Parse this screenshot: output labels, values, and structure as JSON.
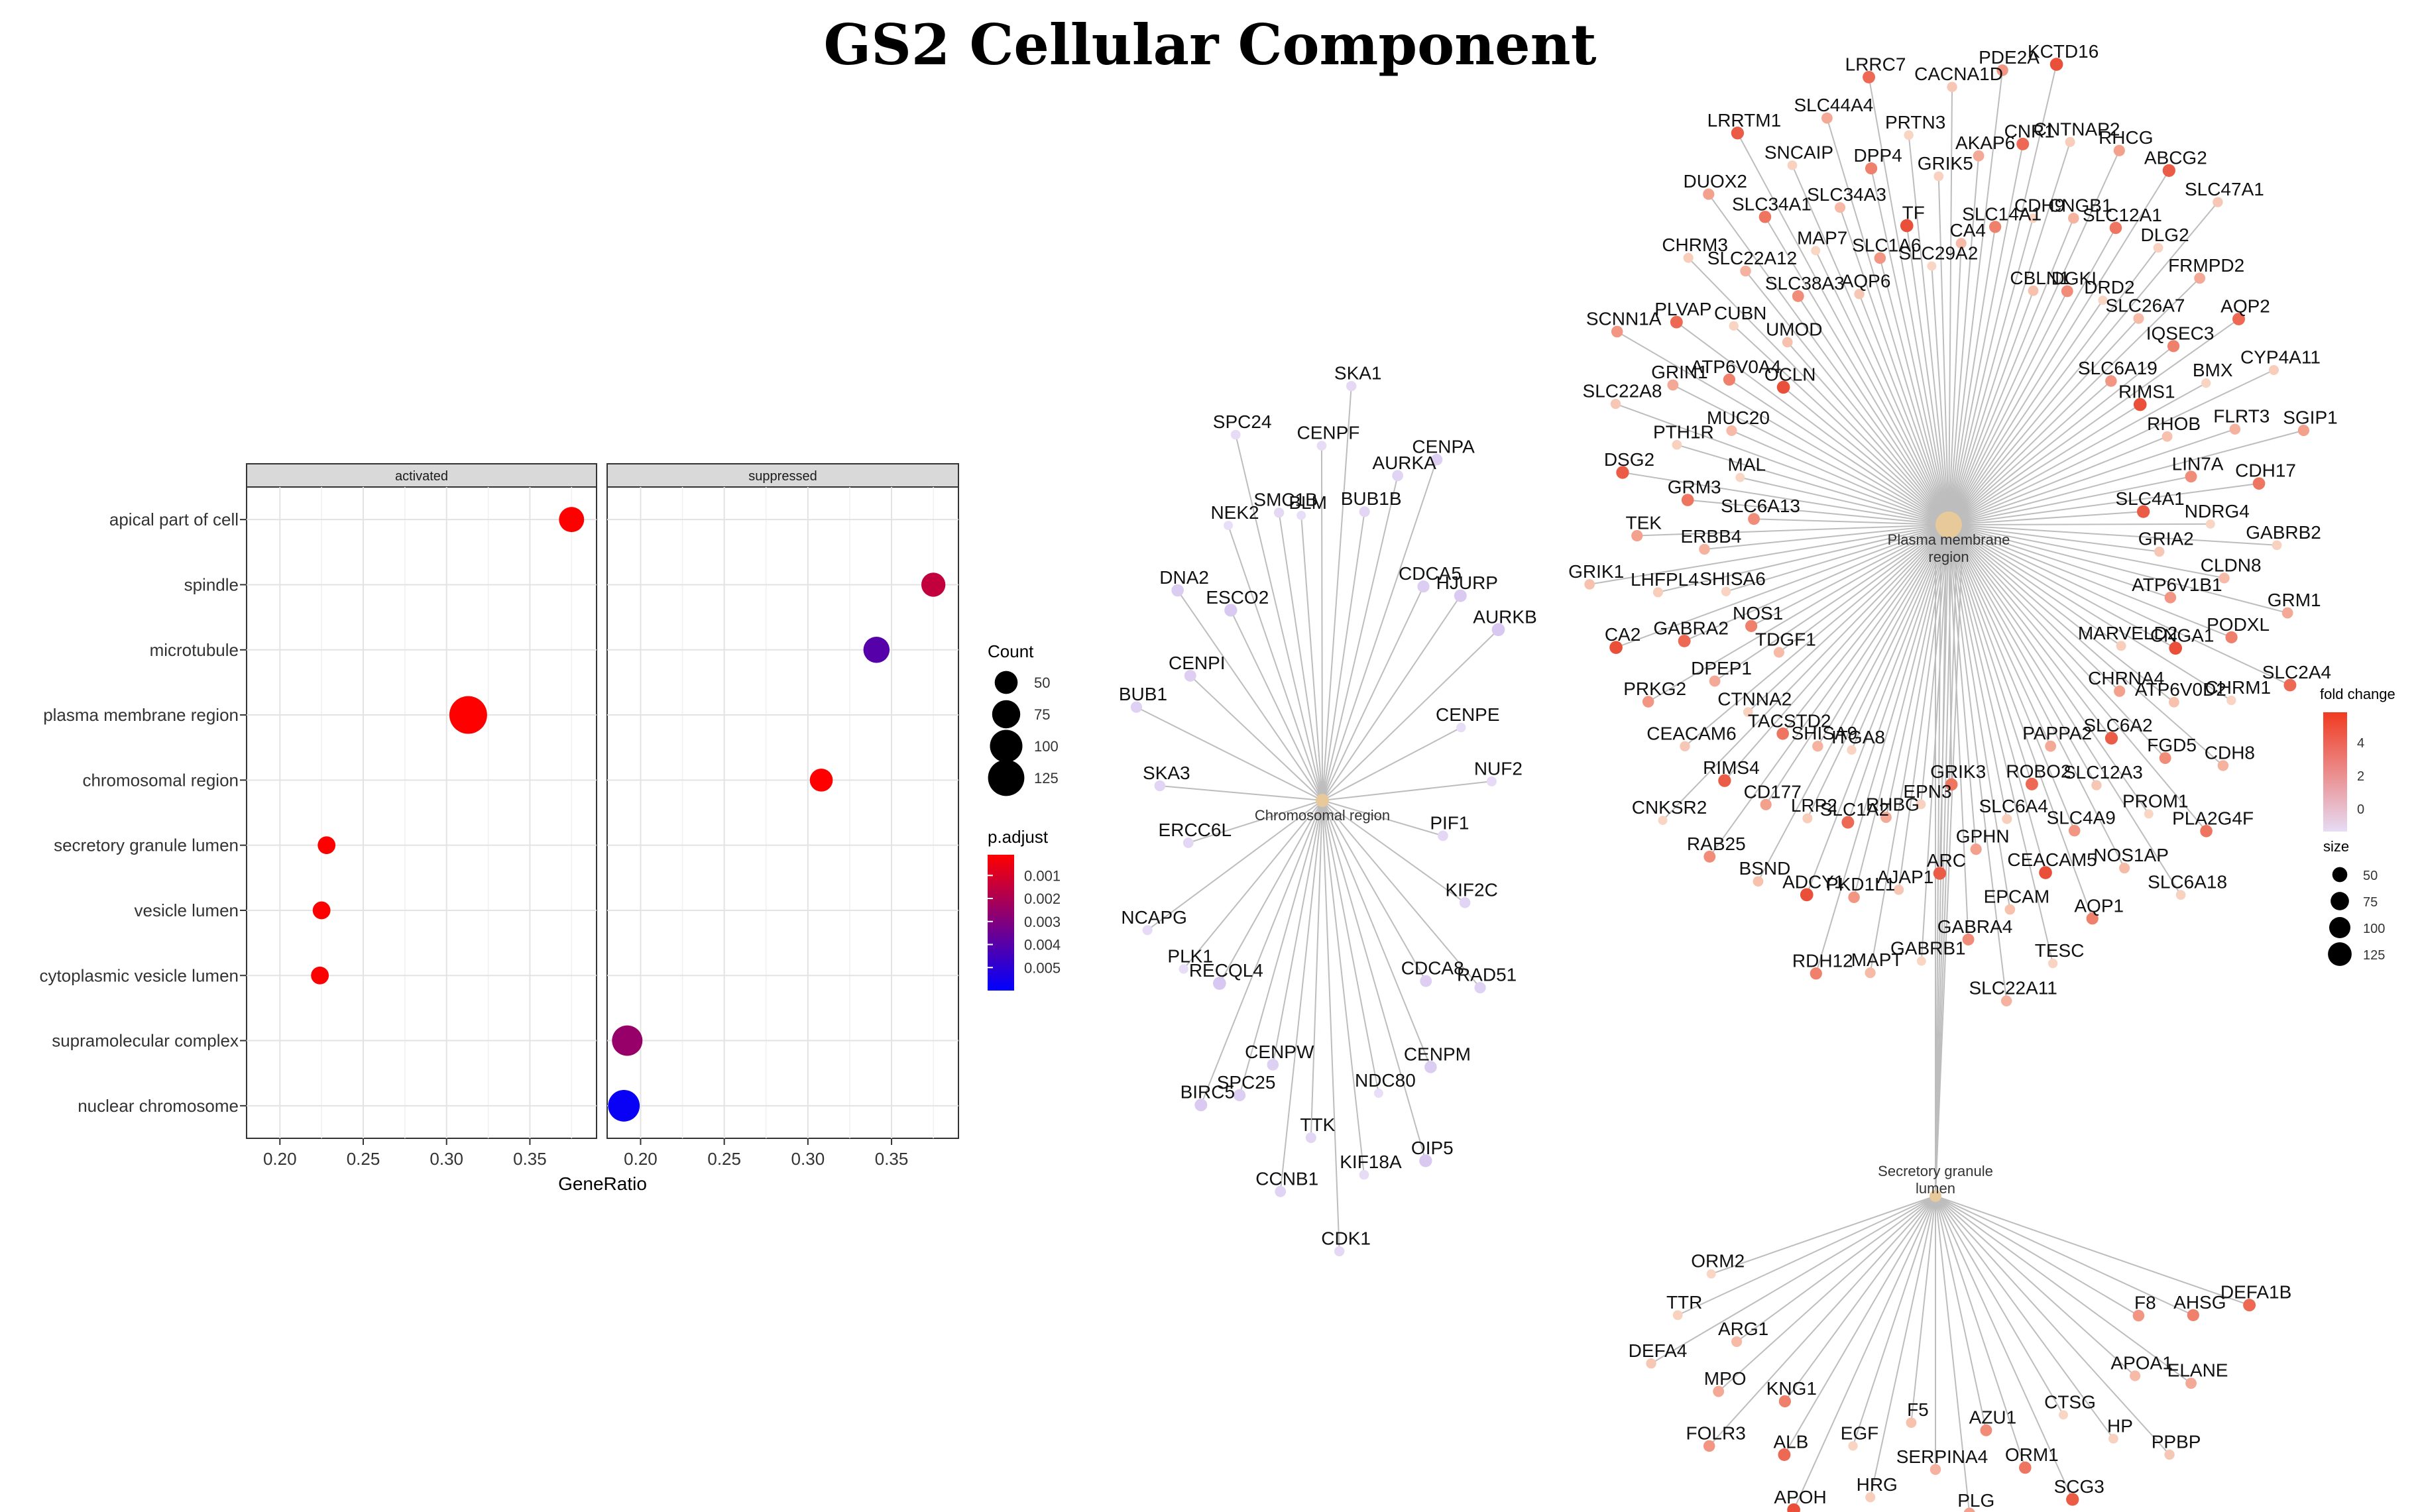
{
  "title": "GS2 Cellular Component",
  "chart_data": [
    {
      "type": "scatter",
      "subtype": "faceted-dotplot",
      "facets": [
        "activated",
        "suppressed"
      ],
      "categories": [
        "apical part of cell",
        "spindle",
        "microtubule",
        "plasma membrane region",
        "chromosomal region",
        "secretory granule lumen",
        "vesicle lumen",
        "cytoplasmic vesicle lumen",
        "supramolecular complex",
        "nuclear chromosome"
      ],
      "xlabel": "GeneRatio",
      "xlim": [
        0.18,
        0.39
      ],
      "xticks": [
        "0.20",
        "0.25",
        "0.30",
        "0.35"
      ],
      "points": [
        {
          "facet": "activated",
          "category": "apical part of cell",
          "x": 0.375,
          "count": 60,
          "p_adjust": 0.0001
        },
        {
          "facet": "suppressed",
          "category": "spindle",
          "x": 0.375,
          "count": 55,
          "p_adjust": 0.0015
        },
        {
          "facet": "suppressed",
          "category": "microtubule",
          "x": 0.341,
          "count": 65,
          "p_adjust": 0.004
        },
        {
          "facet": "activated",
          "category": "plasma membrane region",
          "x": 0.313,
          "count": 135,
          "p_adjust": 0.0001
        },
        {
          "facet": "suppressed",
          "category": "chromosomal region",
          "x": 0.308,
          "count": 50,
          "p_adjust": 0.0001
        },
        {
          "facet": "activated",
          "category": "secretory granule lumen",
          "x": 0.228,
          "count": 30,
          "p_adjust": 0.0001
        },
        {
          "facet": "activated",
          "category": "vesicle lumen",
          "x": 0.225,
          "count": 30,
          "p_adjust": 0.0001
        },
        {
          "facet": "activated",
          "category": "cytoplasmic vesicle lumen",
          "x": 0.224,
          "count": 30,
          "p_adjust": 0.0001
        },
        {
          "facet": "suppressed",
          "category": "supramolecular complex",
          "x": 0.192,
          "count": 88,
          "p_adjust": 0.0025
        },
        {
          "facet": "suppressed",
          "category": "nuclear chromosome",
          "x": 0.19,
          "count": 95,
          "p_adjust": 0.0058
        }
      ],
      "legend_count": {
        "title": "Count",
        "values": [
          50,
          75,
          100,
          125
        ]
      },
      "legend_padjust": {
        "title": "p.adjust",
        "ticks": [
          "0.001",
          "0.002",
          "0.003",
          "0.004",
          "0.005"
        ],
        "range": [
          0.0001,
          0.006
        ],
        "colors": [
          "#ff0000",
          "#0000ff"
        ]
      }
    },
    {
      "type": "network",
      "subtype": "cnetplot",
      "legend_fold": {
        "title": "fold change",
        "ticks": [
          "4",
          "2",
          "0"
        ],
        "colors": [
          "#f03b20",
          "#e6dcf5"
        ]
      },
      "legend_size": {
        "title": "size",
        "values": [
          50,
          75,
          100,
          125
        ]
      },
      "hubs": [
        {
          "label": "Chromosomal region",
          "genes": [
            "BLM",
            "CENPF",
            "SKA1",
            "BUB1B",
            "AURKA",
            "CENPA",
            "CDCA5",
            "HJURP",
            "AURKB",
            "CENPE",
            "NUF2",
            "PIF1",
            "KIF2C",
            "RAD51",
            "CDCA8",
            "CENPM",
            "OIP5",
            "NDC80",
            "KIF18A",
            "CDK1",
            "TTK",
            "CCNB1",
            "CENPW",
            "SPC25",
            "BIRC5",
            "RECQL4",
            "PLK1",
            "NCAPG",
            "ERCC6L",
            "SKA3",
            "BUB1",
            "CENPI",
            "DNA2",
            "ESCO2",
            "NEK2",
            "SPC24",
            "SMC1B"
          ]
        },
        {
          "label": "Plasma membrane region",
          "genes": [
            "SLC29A2",
            "GRIK5",
            "CACNA1D",
            "CA4",
            "AKAP6",
            "PDE2A",
            "SLC14A1",
            "CNR1",
            "KCTD16",
            "CDH9",
            "CNTNAP2",
            "CBLN1",
            "CNGB1",
            "RHCG",
            "DGKI",
            "SLC12A1",
            "ABCG2",
            "DRD2",
            "DLG2",
            "SLC47A1",
            "SLC26A7",
            "FRMPD2",
            "SLC6A19",
            "IQSEC3",
            "AQP2",
            "RIMS1",
            "BMX",
            "CYP4A11",
            "RHOB",
            "FLRT3",
            "SGIP1",
            "LIN7A",
            "CDH17",
            "SLC4A1",
            "NDRG4",
            "GABRB2",
            "GRIA2",
            "CLDN8",
            "GRM1",
            "ATP6V1B1",
            "PODXL",
            "SLC2A4",
            "CNGA1",
            "CHRM1",
            "MARVELD2",
            "ATP6V0D2",
            "CDH8",
            "CHRNA4",
            "FGD5",
            "PLA2G4F",
            "SLC6A2",
            "PROM1",
            "SLC6A18",
            "SLC12A3",
            "NOS1AP",
            "PAPPA2",
            "SLC4A9",
            "AQP1",
            "ROBO2",
            "CEACAM5",
            "TESC",
            "SLC6A4",
            "EPCAM",
            "SLC22A11",
            "GPHN",
            "GABRA4",
            "GRIK3",
            "ARC",
            "GABRB1",
            "EPN3",
            "AJAP1",
            "MAPT",
            "RHBG",
            "PKD1L1",
            "RDH12",
            "SLC1A2",
            "ADCY1",
            "ITGA8",
            "LRP2",
            "BSND",
            "SHISA9",
            "CD177",
            "RAB25",
            "TACSTD2",
            "RIMS4",
            "CNKSR2",
            "CTNNA2",
            "CEACAM6",
            "TDGF1",
            "DPEP1",
            "PRKG2",
            "NOS1",
            "GABRA2",
            "CA2",
            "SHISA6",
            "LHFPL4",
            "GRIK1",
            "ERBB4",
            "TEK",
            "SLC6A13",
            "GRM3",
            "DSG2",
            "MAL",
            "PTH1R",
            "SLC22A8",
            "MUC20",
            "GRIN1",
            "SCNN1A",
            "ATP6V0A4",
            "PLVAP",
            "OCLN",
            "CUBN",
            "CHRM3",
            "UMOD",
            "SLC22A12",
            "DUOX2",
            "SLC38A3",
            "SLC34A1",
            "LRRTM1",
            "MAP7",
            "SNCAIP",
            "AQP6",
            "SLC34A3",
            "SLC44A4",
            "SLC1A6",
            "DPP4",
            "LRRC7",
            "TF",
            "PRTN3"
          ]
        },
        {
          "label": "Secretory granule lumen",
          "genes": [
            "ORM2",
            "TTR",
            "DEFA4",
            "ARG1",
            "MPO",
            "FOLR3",
            "KNG1",
            "ALB",
            "APOH",
            "EGF",
            "HRG",
            "F5",
            "SERPINA4",
            "PLG",
            "AZU1",
            "ORM1",
            "SCG3",
            "CTSG",
            "HP",
            "PPBP",
            "APOA1",
            "ELANE",
            "F8",
            "AHSG",
            "DEFA1B"
          ]
        }
      ]
    }
  ]
}
